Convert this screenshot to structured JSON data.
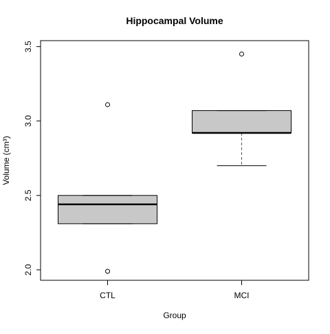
{
  "chart_data": {
    "type": "box",
    "title": "Hippocampal Volume",
    "xlabel": "Group",
    "ylabel": "Volume (cm³)",
    "categories": [
      "CTL",
      "MCI"
    ],
    "yticks": [
      "2.0",
      "2.5",
      "3.0",
      "3.5"
    ],
    "ylim": [
      1.93,
      3.54
    ],
    "boxes": [
      {
        "category": "CTL",
        "whisker_low": 2.31,
        "q1": 2.31,
        "median": 2.44,
        "q3": 2.5,
        "whisker_high": 2.5,
        "outliers": [
          3.11,
          1.99
        ]
      },
      {
        "category": "MCI",
        "whisker_low": 2.7,
        "q1": 2.92,
        "median": 2.92,
        "q3": 3.07,
        "whisker_high": 3.07,
        "outliers": [
          3.45
        ]
      }
    ],
    "grid": false,
    "colors": {
      "box_fill": "#c8c8c8",
      "stroke": "#000000",
      "whisker": "#555555"
    }
  }
}
